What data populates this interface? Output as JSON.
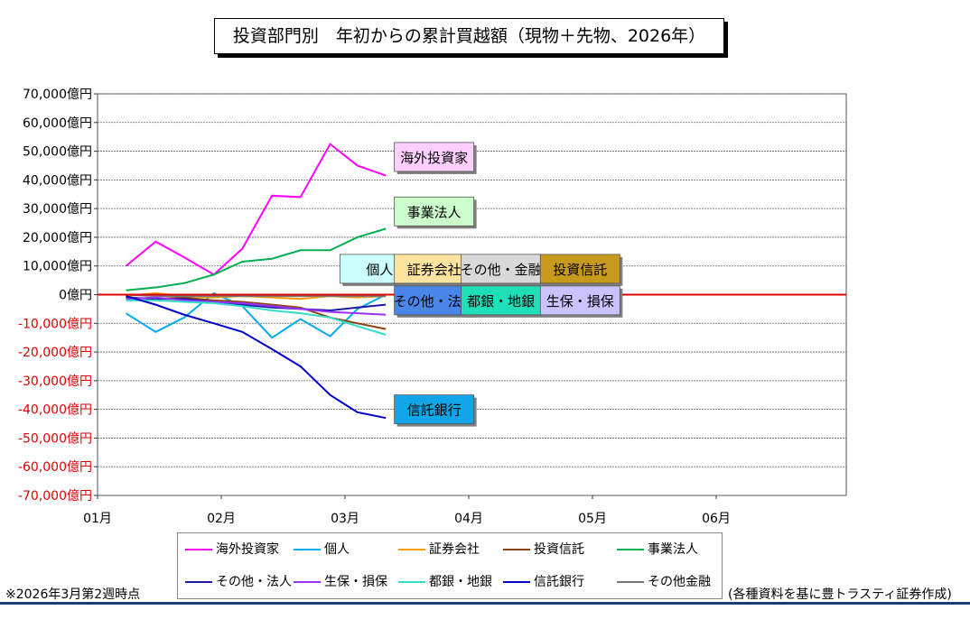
{
  "title": "投資部門別　年初からの累計買越額（現物＋先物、2026年）",
  "note_left": "※2026年3月第2週時点",
  "note_right": "(各種資料を基に豊トラスティ証券作成)",
  "chart_data": {
    "type": "line",
    "title": "投資部門別　年初からの累計買越額（現物＋先物、2026年）",
    "xlabel": "",
    "ylabel": "",
    "ylim": [
      -70000,
      70000
    ],
    "ytick_step": 10000,
    "ytick_suffix": "億円",
    "xlim": [
      0,
      6
    ],
    "xticks": [
      {
        "x": 0,
        "label": "01月"
      },
      {
        "x": 1,
        "label": "02月"
      },
      {
        "x": 2,
        "label": "03月"
      },
      {
        "x": 3,
        "label": "04月"
      },
      {
        "x": 4,
        "label": "05月"
      },
      {
        "x": 5,
        "label": "06月"
      }
    ],
    "zero_line_color": "#e00000",
    "negative_tick_color": "#e00000",
    "x": [
      0.23,
      0.47,
      0.7,
      0.94,
      1.17,
      1.41,
      1.64,
      1.88,
      2.1,
      2.33
    ],
    "series": [
      {
        "name": "海外投資家",
        "color": "#ff00ff",
        "values": [
          10000,
          18500,
          13000,
          7000,
          16000,
          34500,
          34000,
          52500,
          45000,
          41500
        ]
      },
      {
        "name": "個人",
        "color": "#00aaee",
        "values": [
          -6500,
          -13000,
          -8000,
          500,
          -4000,
          -15000,
          -8500,
          -14500,
          -5000,
          0
        ]
      },
      {
        "name": "証券会社",
        "color": "#ff9900",
        "values": [
          -500,
          500,
          -500,
          -1000,
          -500,
          -1000,
          -1500,
          -500,
          -1000,
          -500
        ]
      },
      {
        "name": "投資信託",
        "color": "#8b4513",
        "values": [
          -1000,
          -1500,
          -1000,
          -2000,
          -2500,
          -3500,
          -4500,
          -8000,
          -10000,
          -12000
        ]
      },
      {
        "name": "事業法人",
        "color": "#00b050",
        "values": [
          1500,
          2500,
          4000,
          7000,
          11500,
          12500,
          15500,
          15500,
          20000,
          23000
        ]
      },
      {
        "name": "その他・法人",
        "color": "#1a1aa6",
        "values": [
          -1000,
          -1500,
          -1500,
          -2500,
          -3500,
          -4500,
          -5000,
          -5500,
          -4500,
          -3500
        ]
      },
      {
        "name": "生保・損保",
        "color": "#9933ff",
        "values": [
          -1500,
          -1000,
          -2000,
          -2500,
          -3000,
          -4000,
          -5000,
          -6000,
          -6500,
          -7000
        ]
      },
      {
        "name": "都銀・地銀",
        "color": "#33ddcc",
        "values": [
          -2000,
          -2000,
          -2500,
          -3000,
          -4000,
          -5500,
          -6500,
          -8000,
          -11000,
          -14000
        ]
      },
      {
        "name": "信託銀行",
        "color": "#0000cc",
        "values": [
          -500,
          -3500,
          -7000,
          -10000,
          -13000,
          -19000,
          -25000,
          -35000,
          -41000,
          -43000
        ]
      },
      {
        "name": "その他金融",
        "color": "#777777",
        "values": [
          0,
          -500,
          -500,
          -500,
          -500,
          -500,
          -500,
          -500,
          -500,
          -500
        ]
      }
    ],
    "annotations": [
      {
        "text": "海外投資家",
        "x": 2.72,
        "y": 48000,
        "bg": "#ffcfff"
      },
      {
        "text": "事業法人",
        "x": 2.72,
        "y": 29000,
        "bg": "#ccffcc"
      },
      {
        "text": "個人",
        "x": 2.28,
        "y": 9000,
        "bg": "#ccffff"
      },
      {
        "text": "証券会社",
        "x": 2.72,
        "y": 9000,
        "bg": "#ffe4a0"
      },
      {
        "text": "その他・金融",
        "x": 3.26,
        "y": 9000,
        "bg": "#d9d9d9"
      },
      {
        "text": "投資信託",
        "x": 3.9,
        "y": 9000,
        "bg": "#c79a1c"
      },
      {
        "text": "その他・法人",
        "x": 2.72,
        "y": -2000,
        "bg": "#4a86e8"
      },
      {
        "text": "都銀・地銀",
        "x": 3.26,
        "y": -2000,
        "bg": "#1ee0b8"
      },
      {
        "text": "生保・損保",
        "x": 3.9,
        "y": -2000,
        "bg": "#c9c4ff"
      },
      {
        "text": "信託銀行",
        "x": 2.72,
        "y": -40000,
        "bg": "#12a5e8"
      }
    ]
  }
}
